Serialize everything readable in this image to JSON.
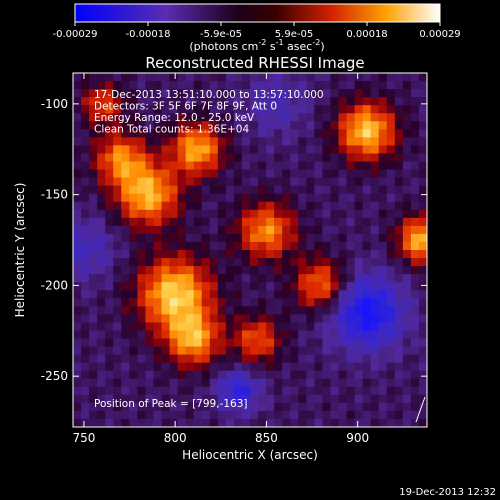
{
  "chart_data": {
    "type": "heatmap",
    "title": "Reconstructed RHESSI Image",
    "xlabel": "Heliocentric X (arcsec)",
    "ylabel": "Heliocentric Y (arcsec)",
    "x_ticks": [
      750,
      800,
      850,
      900
    ],
    "y_ticks": [
      -100,
      -150,
      -200,
      -250
    ],
    "xlim": [
      744,
      938
    ],
    "ylim": [
      -278,
      -83
    ],
    "colorbar": {
      "label": "(photons cm⁻² s⁻¹ asec⁻²)",
      "ticks": [
        "-0.00029",
        "-0.00018",
        "-5.9e-05",
        "5.9e-05",
        "0.00018",
        "0.00029"
      ],
      "range": [
        -0.00029,
        0.00029
      ],
      "colormap": "blue-purple-red-yellow-white"
    },
    "annotations": [
      "17-Dec-2013 13:51:10.000 to 13:57:10.000",
      "Detectors: 3F 5F 6F 7F 8F 9F, Att 0",
      "Energy Range: 12.0 - 25.0 keV",
      "Clean     Total counts: 1.36E+04"
    ],
    "peak_label": "Position of Peak = [799,-163]",
    "sources": [
      {
        "x": 800,
        "y": -205,
        "amp": 1.0,
        "sigma": 14
      },
      {
        "x": 785,
        "y": -150,
        "amp": 0.9,
        "sigma": 12
      },
      {
        "x": 812,
        "y": -125,
        "amp": 0.85,
        "sigma": 10
      },
      {
        "x": 770,
        "y": -130,
        "amp": 0.7,
        "sigma": 10
      },
      {
        "x": 810,
        "y": -230,
        "amp": 0.8,
        "sigma": 10
      },
      {
        "x": 850,
        "y": -170,
        "amp": 0.75,
        "sigma": 11
      },
      {
        "x": 905,
        "y": -115,
        "amp": 0.95,
        "sigma": 11
      },
      {
        "x": 880,
        "y": -200,
        "amp": 0.7,
        "sigma": 10
      },
      {
        "x": 935,
        "y": -175,
        "amp": 0.9,
        "sigma": 9
      },
      {
        "x": 845,
        "y": -230,
        "amp": 0.6,
        "sigma": 9
      },
      {
        "x": 760,
        "y": -100,
        "amp": 0.55,
        "sigma": 8
      },
      {
        "x": 905,
        "y": -215,
        "amp": -0.8,
        "sigma": 14
      },
      {
        "x": 835,
        "y": -258,
        "amp": -0.6,
        "sigma": 8
      },
      {
        "x": 750,
        "y": -180,
        "amp": -0.35,
        "sigma": 12
      },
      {
        "x": 855,
        "y": -100,
        "amp": -0.3,
        "sigma": 12
      }
    ]
  },
  "footer": {
    "timestamp": "19-Dec-2013 12:32"
  }
}
